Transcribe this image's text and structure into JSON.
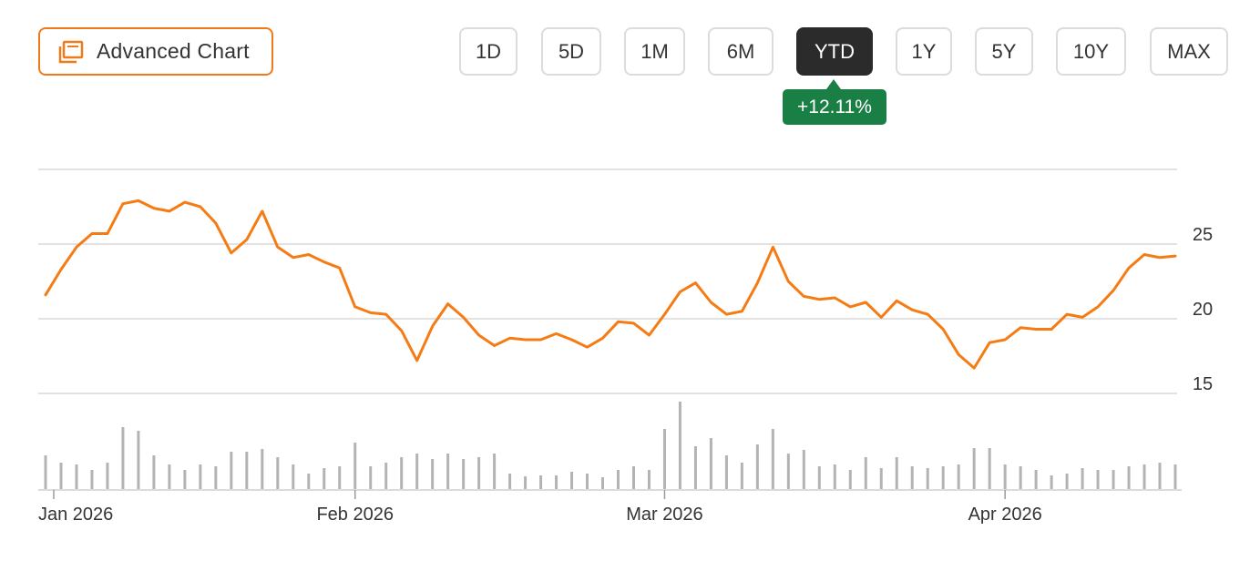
{
  "toolbar": {
    "advanced_chart_label": "Advanced Chart",
    "ranges": [
      "1D",
      "5D",
      "1M",
      "6M",
      "YTD",
      "1Y",
      "5Y",
      "10Y",
      "MAX"
    ],
    "active_range": "YTD",
    "change_badge": "+12.11%",
    "change_color": "#1a7f45"
  },
  "colors": {
    "accent": "#f07a1a",
    "line": "#f57c14",
    "volume": "#b3b3b3",
    "grid": "#d9d9d9"
  },
  "chart_data": {
    "type": "line",
    "price": {
      "yticks": [
        15,
        20,
        25
      ],
      "ylim": [
        15,
        30
      ],
      "values": [
        21.6,
        23.3,
        24.8,
        25.7,
        25.7,
        27.7,
        27.9,
        27.4,
        27.2,
        27.8,
        27.5,
        26.4,
        24.4,
        25.3,
        27.2,
        24.8,
        24.1,
        24.3,
        23.8,
        23.4,
        20.8,
        20.4,
        20.3,
        19.2,
        17.2,
        19.5,
        21.0,
        20.1,
        18.9,
        18.2,
        18.7,
        18.6,
        18.6,
        19.0,
        18.6,
        18.1,
        18.7,
        19.8,
        19.7,
        18.9,
        20.3,
        21.8,
        22.4,
        21.1,
        20.3,
        20.5,
        22.4,
        24.8,
        22.5,
        21.5,
        21.3,
        21.4,
        20.8,
        21.1,
        20.1,
        21.2,
        20.6,
        20.3,
        19.3,
        17.6,
        16.7,
        18.4,
        18.6,
        19.4,
        19.3,
        19.3,
        20.3,
        20.1,
        20.8,
        21.9,
        23.4,
        24.3,
        24.1,
        24.2
      ]
    },
    "volume": {
      "values": [
        37,
        29,
        27,
        21,
        29,
        68,
        64,
        37,
        27,
        21,
        27,
        25,
        41,
        41,
        44,
        35,
        27,
        17,
        23,
        25,
        51,
        25,
        29,
        35,
        39,
        33,
        39,
        33,
        35,
        39,
        17,
        14,
        15,
        15,
        19,
        17,
        13,
        21,
        25,
        21,
        66,
        96,
        47,
        56,
        37,
        29,
        49,
        66,
        39,
        43,
        25,
        27,
        21,
        35,
        23,
        35,
        25,
        23,
        25,
        27,
        45,
        45,
        27,
        25,
        21,
        15,
        17,
        23,
        21,
        21,
        25,
        27,
        29,
        27
      ]
    },
    "x_labels": [
      "Jan 2026",
      "Feb 2026",
      "Mar 2026",
      "Apr 2026"
    ],
    "x_label_indices": [
      0,
      20,
      40,
      62
    ]
  }
}
